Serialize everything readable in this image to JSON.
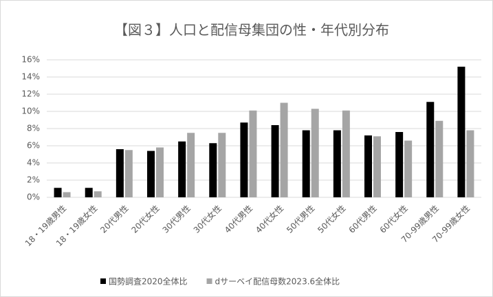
{
  "chart_data": {
    "type": "bar",
    "title": "【図３】人口と配信母集団の性・年代別分布",
    "categories": [
      "18・19歳男性",
      "18・19歳女性",
      "20代男性",
      "20代女性",
      "30代男性",
      "30代女性",
      "40代男性",
      "40代女性",
      "50代男性",
      "50代女性",
      "60代男性",
      "60代女性",
      "70-99歳男性",
      "70-99歳女性"
    ],
    "series": [
      {
        "name": "国勢調査2020全体比",
        "color": "#000000",
        "values": [
          1.1,
          1.1,
          5.6,
          5.4,
          6.5,
          6.3,
          8.7,
          8.4,
          7.8,
          7.8,
          7.2,
          7.6,
          11.1,
          15.2
        ]
      },
      {
        "name": "dサーベイ配信母数2023.6全体比",
        "color": "#a5a5a5",
        "values": [
          0.6,
          0.7,
          5.5,
          5.8,
          7.5,
          7.5,
          10.1,
          11.0,
          10.3,
          10.1,
          7.1,
          6.6,
          8.9,
          7.8
        ]
      }
    ],
    "ylim": [
      0,
      16
    ],
    "yticks": [
      {
        "value": 0,
        "label": "0%"
      },
      {
        "value": 2,
        "label": "2%"
      },
      {
        "value": 4,
        "label": "4%"
      },
      {
        "value": 6,
        "label": "6%"
      },
      {
        "value": 8,
        "label": "8%"
      },
      {
        "value": 10,
        "label": "10%"
      },
      {
        "value": 12,
        "label": "12%"
      },
      {
        "value": 14,
        "label": "14%"
      },
      {
        "value": 16,
        "label": "16%"
      }
    ],
    "grid": true,
    "legend": "bottom"
  }
}
